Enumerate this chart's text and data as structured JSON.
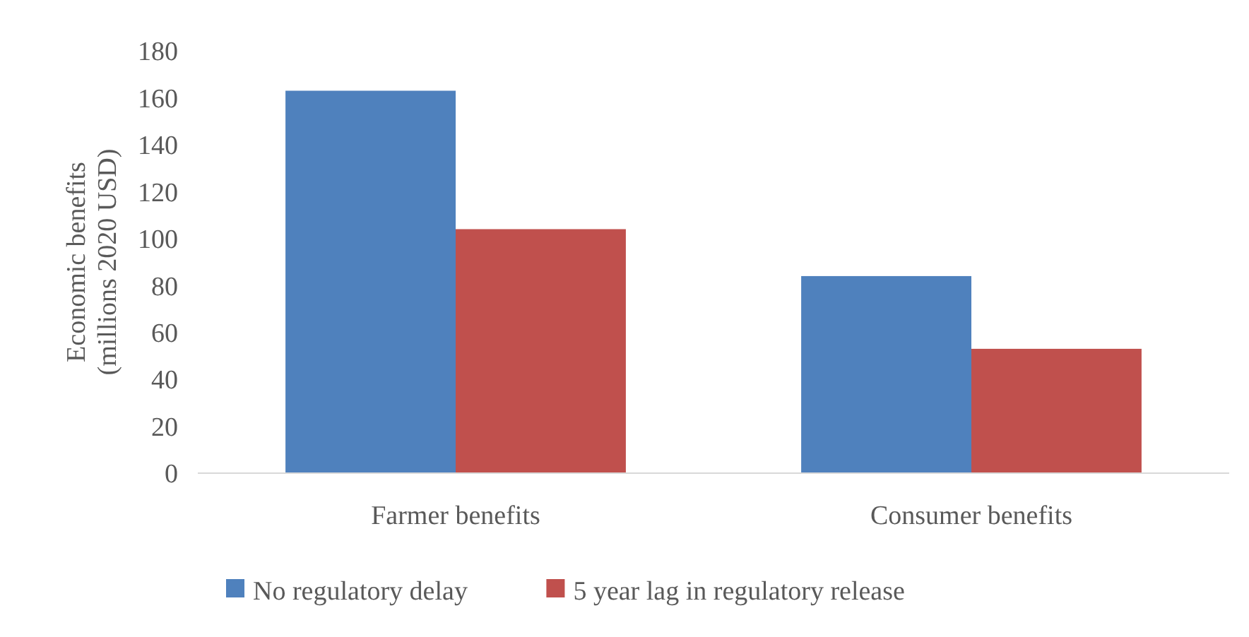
{
  "chart_data": {
    "type": "bar",
    "ylabel": "Economic benefits\n(millions 2020 USD)",
    "categories": [
      "Farmer benefits",
      "Consumer benefits"
    ],
    "series": [
      {
        "name": "No regulatory delay",
        "color": "#4f81bd",
        "values": [
          163,
          84
        ]
      },
      {
        "name": "5 year lag in regulatory release",
        "color": "#c0504d",
        "values": [
          104,
          53
        ]
      }
    ],
    "ylim": [
      0,
      180
    ],
    "yticks": [
      0,
      20,
      40,
      60,
      80,
      100,
      120,
      140,
      160,
      180
    ],
    "grid": false,
    "legend": "bottom"
  }
}
